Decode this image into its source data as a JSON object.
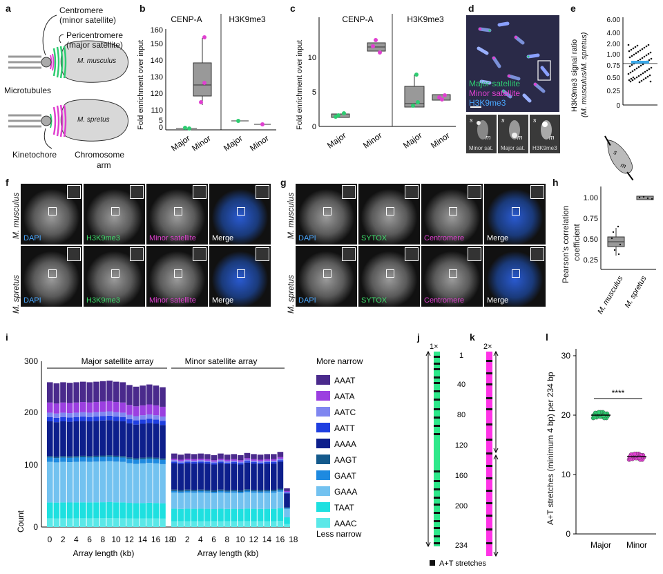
{
  "panels": {
    "a": "a",
    "b": "b",
    "c": "c",
    "d": "d",
    "e": "e",
    "f": "f",
    "g": "g",
    "h": "h",
    "i": "i",
    "j": "j",
    "k": "k",
    "l": "l"
  },
  "a": {
    "centromere": "Centromere",
    "minor_sat": "(minor satellite)",
    "pericentromere": "Pericentromere",
    "major_sat": "(major satellite)",
    "musculus": "M. musculus",
    "spretus": "M. spretus",
    "microtubules": "Microtubules",
    "kinetochore": "Kinetochore",
    "chromosome": "Chromosome",
    "arm": "arm"
  },
  "b": {
    "ylabel": "Fold enrichment over input",
    "titles": [
      "CENP-A",
      "H3K9me3"
    ],
    "yticks": [
      "0",
      "5",
      "110",
      "120",
      "130",
      "140",
      "150",
      "160"
    ],
    "xcats": [
      "Major",
      "Minor",
      "Major",
      "Minor"
    ]
  },
  "c": {
    "ylabel": "Fold enrichment over input",
    "titles": [
      "CENP-A",
      "H3K9me3"
    ],
    "yticks": [
      "0",
      "5",
      "10"
    ],
    "xcats": [
      "Major",
      "Minor",
      "Major",
      "Minor"
    ]
  },
  "d": {
    "legend": [
      "Major satellite",
      "Minor satellite",
      "H3K9me3"
    ],
    "legend_colors": [
      "#2ecc71",
      "#e040d0",
      "#4aa8ff"
    ],
    "insets": [
      "Minor sat.",
      "Major sat.",
      "H3K9me3"
    ],
    "s": "s",
    "m": "m"
  },
  "e": {
    "ylabel1": "H3K9me3 signal ratio",
    "ylabel2": "(M. musculus/M. spretus)",
    "yticks": [
      "0",
      "0.25",
      "0.50",
      "0.75",
      "1.00",
      "2.00",
      "4.00",
      "6.00",
      "8.00"
    ],
    "s": "s",
    "m": "m"
  },
  "f": {
    "rows": [
      "M. musculus",
      "M. spretus"
    ],
    "cols": [
      "DAPI",
      "H3K9me3",
      "Minor satellite",
      "Merge"
    ],
    "col_colors": [
      "#4aa8ff",
      "#3ddc6a",
      "#e040d0",
      "#ffffff"
    ]
  },
  "g": {
    "rows": [
      "M. musculus",
      "M. spretus"
    ],
    "cols": [
      "DAPI",
      "SYTOX",
      "Centromere",
      "Merge"
    ],
    "col_colors": [
      "#4aa8ff",
      "#3ddc6a",
      "#e040d0",
      "#ffffff"
    ]
  },
  "h": {
    "ylabel1": "Pearson's correlation",
    "ylabel2": "coefficient",
    "yticks": [
      "0.25",
      "0.50",
      "0.75",
      "1.00"
    ],
    "xcats": [
      "M. musculus",
      "M. spretus"
    ]
  },
  "chart_data": [
    {
      "type": "bar",
      "panel": "i",
      "ylabel": "Count",
      "xlabel": "Array length (kb)",
      "xlabel2": "Array length (kb)",
      "group_labels": [
        "Major satellite array",
        "Minor satellite array"
      ],
      "yticks": [
        "0",
        "100",
        "200",
        "300"
      ],
      "xticks": [
        "0",
        "2",
        "4",
        "6",
        "8",
        "10",
        "12",
        "14",
        "16",
        "18",
        "0",
        "2",
        "4",
        "6",
        "8",
        "10",
        "12",
        "14",
        "16",
        "18"
      ],
      "ylim": [
        0,
        300
      ],
      "legend_top": "More narrow",
      "legend_bottom": "Less narrow",
      "series_names": [
        "AAAT",
        "AATA",
        "AATC",
        "AATT",
        "AAAA",
        "AAGT",
        "GAAT",
        "GAAA",
        "TAAT",
        "AAAC"
      ],
      "series_colors": [
        "#4a2a8c",
        "#9b3fe0",
        "#7f86f0",
        "#1f3fe0",
        "#0d1f8c",
        "#145a8c",
        "#1e8ae0",
        "#73c2f0",
        "#1ee0e0",
        "#5be8e8"
      ],
      "major_totals": [
        262,
        260,
        262,
        261,
        262,
        263,
        262,
        263,
        264,
        265,
        263,
        262,
        257,
        254,
        256,
        258,
        256,
        253
      ],
      "minor_totals": [
        133,
        131,
        133,
        132,
        133,
        132,
        130,
        133,
        131,
        132,
        130,
        134,
        132,
        131,
        132,
        132,
        136,
        70
      ],
      "major_fractions": [
        0.14,
        0.07,
        0.03,
        0.03,
        0.24,
        0.01,
        0.03,
        0.28,
        0.11,
        0.06
      ],
      "minor_fractions": [
        0.07,
        0.02,
        0.02,
        0.02,
        0.36,
        0.02,
        0.02,
        0.22,
        0.17,
        0.08
      ]
    },
    {
      "type": "scatter",
      "panel": "l",
      "ylabel": "A+T stretches (minimum 4 bp) per 234 bp",
      "categories": [
        "Major",
        "Minor"
      ],
      "means": [
        20,
        13
      ],
      "yticks": [
        "0",
        "10",
        "20",
        "30"
      ],
      "ylim": [
        0,
        30
      ],
      "significance": "****"
    }
  ],
  "jk": {
    "j_top": "1×",
    "k_top": "2×",
    "ticks": [
      "1",
      "40",
      "80",
      "120",
      "160",
      "200",
      "234"
    ],
    "legend": "A+T stretches"
  }
}
